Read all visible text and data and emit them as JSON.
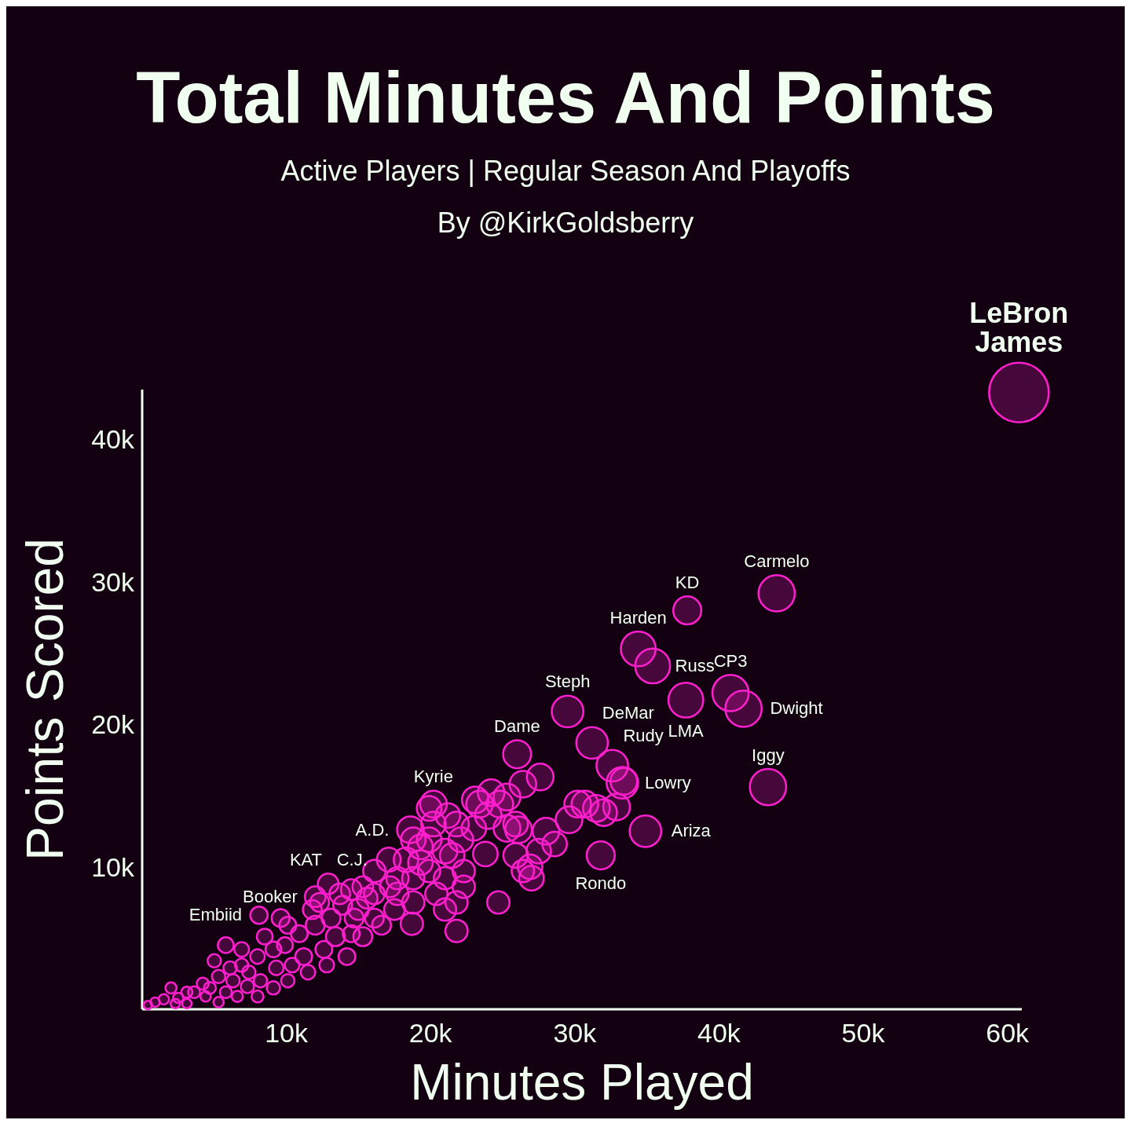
{
  "chart_data": {
    "type": "bubble",
    "title": "Total Minutes And Points",
    "subtitle": "Active Players | Regular Season And Playoffs",
    "xlabel": "Minutes Played",
    "ylabel": "Points Scored",
    "xlim": [
      0,
      61000
    ],
    "ylim": [
      0,
      43500
    ],
    "xticks": [
      {
        "value": 10000,
        "label": "10k"
      },
      {
        "value": 20000,
        "label": "20k"
      },
      {
        "value": 30000,
        "label": "30k"
      },
      {
        "value": 40000,
        "label": "40k"
      },
      {
        "value": 50000,
        "label": "50k"
      },
      {
        "value": 60000,
        "label": "60k"
      }
    ],
    "yticks": [
      {
        "value": 10000,
        "label": "10k"
      },
      {
        "value": 20000,
        "label": "20k"
      },
      {
        "value": 30000,
        "label": "30k"
      },
      {
        "value": 40000,
        "label": "40k"
      }
    ],
    "color": "#ff1fcf",
    "x": [
      60800,
      37800,
      44000,
      34400,
      35400,
      40800,
      41700,
      37700,
      29500,
      31200,
      32600,
      33300,
      43400,
      34900,
      31800,
      26000,
      20200,
      18600,
      17100,
      12900,
      12000,
      8100,
      27600,
      26400,
      24200,
      23400,
      24800,
      25300,
      26100,
      28000,
      29600,
      30200,
      31500,
      32900,
      32000,
      33400,
      25900,
      26900,
      27000,
      27500,
      23800,
      23000,
      21800,
      21200,
      20200,
      19900,
      19300,
      18800,
      19900,
      21000,
      21500,
      22300,
      22300,
      21800,
      21000,
      20400,
      18800,
      17700,
      18300,
      19300,
      24700,
      21800,
      18700,
      17500,
      16100,
      16100,
      15600,
      15000,
      14500,
      13700,
      14700,
      15300,
      14200,
      13400,
      12600,
      12000,
      11200,
      11800,
      12300,
      10900,
      10100,
      9900,
      10400,
      9300,
      9100,
      8500,
      9600,
      8000,
      7400,
      6900,
      6300,
      5800,
      5300,
      4700,
      4200,
      3600,
      3100,
      2500,
      2000,
      1500,
      900,
      400,
      7300,
      8200,
      6100,
      5000,
      6900,
      13100,
      16600,
      13900,
      25300,
      28600,
      30700,
      23100,
      24000,
      25900,
      26400,
      19900,
      18800,
      17700,
      22100,
      21000,
      17200,
      16100,
      12800,
      11500,
      14500,
      15300,
      5800,
      6600,
      4400,
      3100,
      2300,
      8000,
      9100,
      10100,
      5300
    ],
    "values": [
      43300,
      28000,
      29200,
      25300,
      24100,
      22200,
      21100,
      21700,
      20900,
      18700,
      17100,
      15900,
      15600,
      12500,
      10800,
      17900,
      14400,
      12600,
      10500,
      8800,
      7900,
      6600,
      16300,
      15800,
      15200,
      14400,
      14400,
      12700,
      12600,
      12500,
      13300,
      14400,
      14100,
      14200,
      13800,
      16000,
      10800,
      10000,
      9200,
      11100,
      10900,
      12700,
      13000,
      13600,
      13000,
      11900,
      10300,
      9200,
      9700,
      11100,
      10800,
      9700,
      8600,
      7500,
      7000,
      8100,
      7500,
      8100,
      10500,
      11400,
      7500,
      5500,
      6000,
      7000,
      8100,
      9700,
      7800,
      7000,
      8400,
      8100,
      6400,
      5100,
      3700,
      5100,
      4200,
      5900,
      3700,
      7000,
      7500,
      5300,
      5900,
      4500,
      3100,
      2900,
      4200,
      5100,
      6400,
      3700,
      2600,
      3100,
      2000,
      4500,
      2300,
      1500,
      1800,
      1200,
      1200,
      800,
      1500,
      700,
      500,
      300,
      1600,
      2000,
      2900,
      3400,
      4200,
      6400,
      5900,
      7300,
      14900,
      11600,
      14400,
      14700,
      13600,
      13000,
      9700,
      14100,
      11900,
      9200,
      11900,
      9200,
      8600,
      6400,
      3100,
      2600,
      5300,
      8600,
      1200,
      900,
      900,
      400,
      400,
      900,
      1500,
      2000,
      500
    ],
    "sizes": [
      1,
      0.22,
      0.37,
      0.34,
      0.34,
      0.37,
      0.37,
      0.34,
      0.28,
      0.28,
      0.28,
      0.28,
      0.37,
      0.28,
      0.22,
      0.22,
      0.2,
      0.2,
      0.16,
      0.12,
      0.12,
      0.084,
      0.2,
      0.2,
      0.2,
      0.2,
      0.2,
      0.2,
      0.2,
      0.2,
      0.2,
      0.2,
      0.2,
      0.2,
      0.2,
      0.2,
      0.17,
      0.17,
      0.17,
      0.17,
      0.17,
      0.17,
      0.17,
      0.17,
      0.17,
      0.17,
      0.17,
      0.14,
      0.14,
      0.17,
      0.17,
      0.14,
      0.14,
      0.14,
      0.14,
      0.14,
      0.14,
      0.14,
      0.17,
      0.17,
      0.14,
      0.14,
      0.14,
      0.12,
      0.12,
      0.14,
      0.12,
      0.12,
      0.12,
      0.12,
      0.1,
      0.1,
      0.08,
      0.1,
      0.08,
      0.1,
      0.08,
      0.1,
      0.1,
      0.08,
      0.08,
      0.07,
      0.06,
      0.06,
      0.07,
      0.07,
      0.09,
      0.06,
      0.05,
      0.05,
      0.05,
      0.07,
      0.05,
      0.04,
      0.04,
      0.04,
      0.035,
      0.03,
      0.035,
      0.03,
      0.025,
      0.02,
      0.05,
      0.05,
      0.05,
      0.05,
      0.06,
      0.1,
      0.1,
      0.1,
      0.2,
      0.17,
      0.2,
      0.2,
      0.2,
      0.17,
      0.14,
      0.17,
      0.17,
      0.14,
      0.17,
      0.14,
      0.12,
      0.1,
      0.06,
      0.06,
      0.08,
      0.12,
      0.04,
      0.035,
      0.03,
      0.025,
      0.025,
      0.04,
      0.05,
      0.05,
      0.03
    ],
    "annotations": [
      "By @KirkGoldsberry",
      {
        "text": "LeBron\nJames",
        "x": 60800,
        "y": 43300
      },
      {
        "text": "KD",
        "x": 37800,
        "y": 28000
      },
      {
        "text": "Carmelo",
        "x": 44000,
        "y": 29200
      },
      {
        "text": "Harden",
        "x": 34400,
        "y": 25300
      },
      {
        "text": "Russ",
        "x": 35400,
        "y": 24100
      },
      {
        "text": "CP3",
        "x": 40800,
        "y": 22200
      },
      {
        "text": "Dwight",
        "x": 41700,
        "y": 21100
      },
      {
        "text": "LMA",
        "x": 37700,
        "y": 21700
      },
      {
        "text": "Steph",
        "x": 29500,
        "y": 20900
      },
      {
        "text": "DeMar",
        "x": 31200,
        "y": 18700
      },
      {
        "text": "Rudy",
        "x": 32600,
        "y": 17100
      },
      {
        "text": "Lowry",
        "x": 33300,
        "y": 15900
      },
      {
        "text": "Iggy",
        "x": 43400,
        "y": 15600
      },
      {
        "text": "Ariza",
        "x": 34900,
        "y": 12500
      },
      {
        "text": "Rondo",
        "x": 31800,
        "y": 10800
      },
      {
        "text": "Dame",
        "x": 26000,
        "y": 17900
      },
      {
        "text": "Kyrie",
        "x": 20200,
        "y": 14400
      },
      {
        "text": "A.D.",
        "x": 18600,
        "y": 12600
      },
      {
        "text": "C.J.",
        "x": 17100,
        "y": 10500
      },
      {
        "text": "KAT",
        "x": 12900,
        "y": 8800
      },
      {
        "text": "Booker",
        "x": 12000,
        "y": 7900
      },
      {
        "text": "Embiid",
        "x": 8100,
        "y": 6600
      }
    ]
  }
}
